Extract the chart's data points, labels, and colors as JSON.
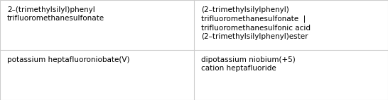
{
  "rows": [
    {
      "col1": "2–(trimethylsilyl)phenyl\ntrifluoromethanesulfonate",
      "col2": "(2–trimethylsilylphenyl)\ntrifluoromethanesulfonate  |\ntrifluoromethanesulfonic acid\n(2–trimethylsilylphenyl)ester"
    },
    {
      "col1": "potassium heptafluoroniobate(V)",
      "col2": "dipotassium niobium(+5)\ncation heptafluoride"
    }
  ],
  "col_split": 0.5,
  "background_color": "#ffffff",
  "border_color": "#cccccc",
  "text_color": "#000000",
  "font_size": 7.5,
  "row_split": 0.5
}
